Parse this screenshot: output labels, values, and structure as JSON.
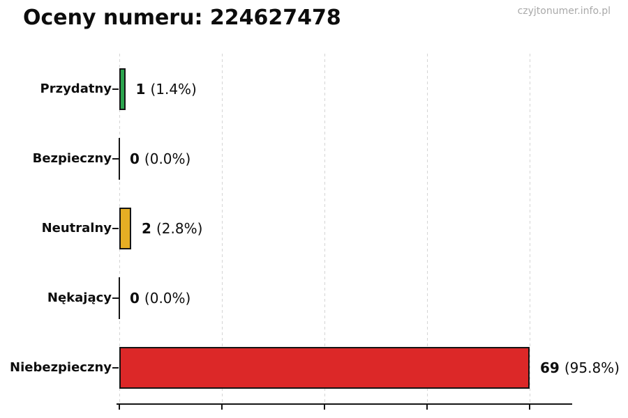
{
  "page": {
    "watermark": "czyjtonumer.info.pl"
  },
  "chart_data": {
    "type": "bar",
    "orientation": "horizontal",
    "title": "Oceny numeru: 224627478",
    "categories": [
      "Przydatny",
      "Bezpieczny",
      "Neutralny",
      "Nękający",
      "Niebezpieczny"
    ],
    "values": [
      1,
      0,
      2,
      0,
      69
    ],
    "value_labels": [
      "1",
      "0",
      "2",
      "0",
      "69"
    ],
    "pct_labels": [
      "(1.4%)",
      "(0.0%)",
      "(2.8%)",
      "(0.0%)",
      "(95.8%)"
    ],
    "bar_colors": [
      "#2ca54e",
      "#141414",
      "#e6ae24",
      "#141414",
      "#dc2828"
    ],
    "bar_edge_color": "#141414",
    "xlabel": "",
    "ylabel": "",
    "xlim": [
      0,
      76
    ],
    "x_tick_labels": [],
    "grid": {
      "axis": "x",
      "style": "dashed",
      "color": "#d4d4d4",
      "values": [
        0,
        17.25,
        34.5,
        51.75,
        69
      ]
    }
  }
}
